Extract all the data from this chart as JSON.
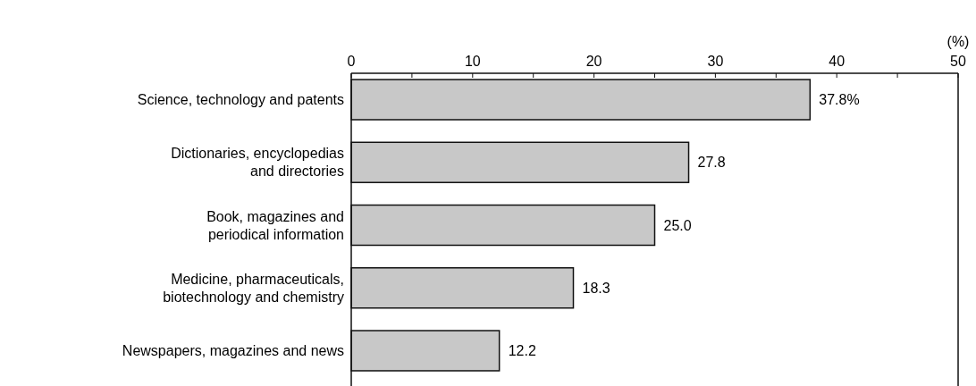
{
  "chart_data": {
    "type": "bar",
    "orientation": "horizontal",
    "categories": [
      "Science, technology and patents",
      "Dictionaries, encyclopedias\nand directories",
      "Book, magazines and\nperiodical information",
      "Medicine, pharmaceuticals,\nbiotechnology and chemistry",
      "Newspapers, magazines and news"
    ],
    "values": [
      37.8,
      27.8,
      25.0,
      18.3,
      12.2
    ],
    "value_labels": [
      "37.8%",
      "27.8",
      "25.0",
      "18.3",
      "12.2"
    ],
    "color": "#c8c8c8",
    "xlabel": "(%)",
    "xlim": [
      0,
      50
    ],
    "xticks": [
      0,
      {
        "value": 5,
        "label": null
      },
      10,
      {
        "value": 15,
        "label": null
      },
      20,
      {
        "value": 25,
        "label": null
      },
      30,
      {
        "value": 35,
        "label": null
      },
      40,
      {
        "value": 45,
        "label": null
      },
      50
    ],
    "grid": false
  }
}
